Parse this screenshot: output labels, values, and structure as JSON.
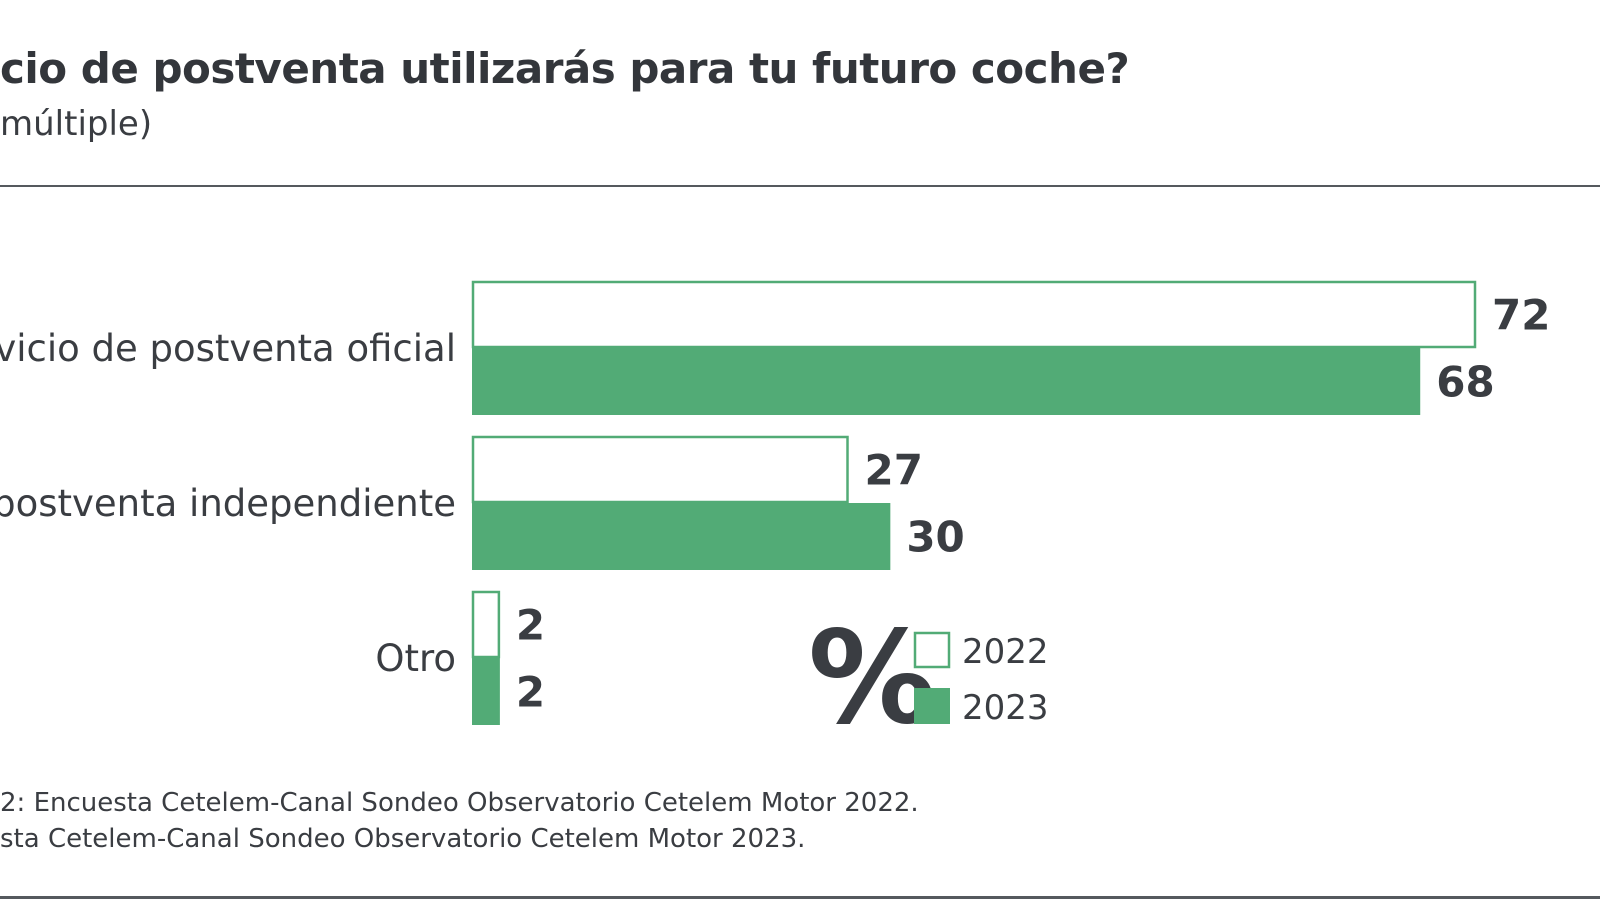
{
  "title": "cio de postventa utilizarás para tu futuro coche?",
  "subtitle": " múltiple)",
  "unit_symbol": "%",
  "colors": {
    "green": "#52ab76",
    "white": "#ffffff",
    "text": "#3a3d42"
  },
  "chart_data": {
    "type": "bar",
    "orientation": "horizontal",
    "categories": [
      "vicio de postventa oficial",
      "postventa independiente",
      "Otro"
    ],
    "series": [
      {
        "name": "2022",
        "values": [
          72,
          27,
          2
        ],
        "style": "outline"
      },
      {
        "name": "2023",
        "values": [
          68,
          30,
          2
        ],
        "style": "filled"
      }
    ],
    "xlim": [
      0,
      72
    ],
    "grid": false,
    "legend": "bottom-center"
  },
  "source": {
    "line1": "2: Encuesta Cetelem-Canal Sondeo Observatorio Cetelem Motor 2022.",
    "line2": "sta Cetelem-Canal Sondeo Observatorio Cetelem Motor 2023."
  }
}
